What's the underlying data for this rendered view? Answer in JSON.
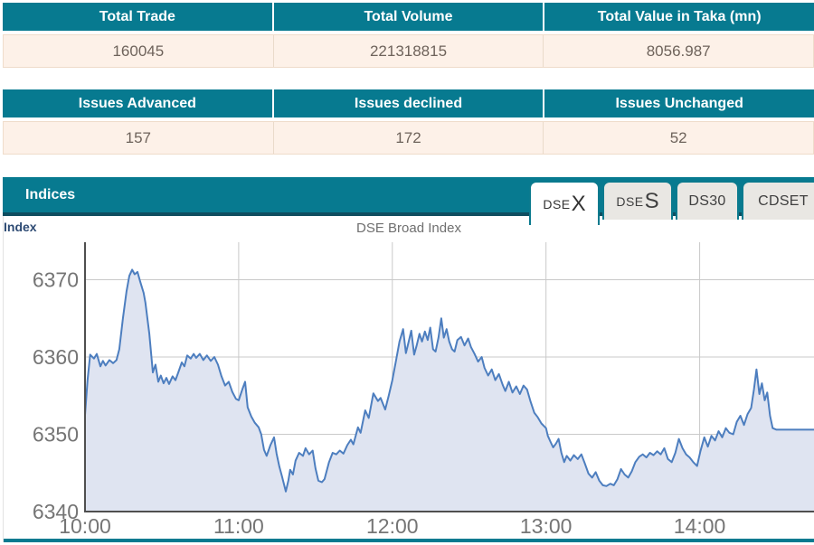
{
  "summary_table": {
    "headers": [
      "Total Trade",
      "Total Volume",
      "Total Value in Taka (mn)"
    ],
    "values": [
      "160045",
      "221318815",
      "8056.987"
    ]
  },
  "issues_table": {
    "headers": [
      "Issues Advanced",
      "Issues declined",
      "Issues Unchanged"
    ],
    "values": [
      "157",
      "172",
      "52"
    ]
  },
  "indices_panel": {
    "title": "Indices",
    "tabs": [
      {
        "name": "DSEX",
        "prefix": "DSE",
        "suffix": "X",
        "active": true
      },
      {
        "name": "DSES",
        "prefix": "DSE",
        "suffix": "S",
        "active": false
      },
      {
        "name": "DS30",
        "prefix": "DS30",
        "suffix": "",
        "active": false
      },
      {
        "name": "CDSET",
        "prefix": "CDSET",
        "suffix": "",
        "active": false
      }
    ],
    "axis_caption": "Index",
    "chart_title": "DSE Broad Index"
  },
  "colors": {
    "header_teal": "#077a90",
    "header_teal_dark_edge": "#0f4d60",
    "value_row_cream": "#fdf1e8",
    "value_text": "#6e635b",
    "chart_line": "#4d7ebf",
    "chart_area_fill": "#dfe4f1",
    "gridline": "#c9c9c9",
    "axis": "#4f4f4f",
    "tick_label": "#757575",
    "index_caption_blue": "#2d4a73",
    "chart_title_gray": "#6f6f6f"
  },
  "chart_data": {
    "type": "area",
    "title": "DSE Broad Index",
    "ylabel": "Index",
    "ylim": [
      6340,
      6375
    ],
    "y_ticks": [
      6340,
      6350,
      6360,
      6370
    ],
    "x_ticks": [
      "10:00",
      "11:00",
      "12:00",
      "13:00",
      "14:00"
    ],
    "x_tick_minutes": [
      0,
      60,
      120,
      180,
      240
    ],
    "x_range_minutes": [
      0,
      285
    ],
    "grid": true,
    "legend": "none",
    "series": [
      {
        "name": "DSEX",
        "points": [
          [
            0,
            6352.5
          ],
          [
            1,
            6357
          ],
          [
            2,
            6360.3
          ],
          [
            3.5,
            6359.8
          ],
          [
            4.6,
            6360.4
          ],
          [
            6,
            6358.8
          ],
          [
            7,
            6359.5
          ],
          [
            8,
            6358.9
          ],
          [
            9.5,
            6359.6
          ],
          [
            11,
            6359.2
          ],
          [
            12.3,
            6359.6
          ],
          [
            13.4,
            6361
          ],
          [
            14.8,
            6365
          ],
          [
            16.2,
            6368.5
          ],
          [
            17.3,
            6370.5
          ],
          [
            18.4,
            6371.3
          ],
          [
            19.4,
            6370.7
          ],
          [
            20.5,
            6371
          ],
          [
            21.5,
            6369.8
          ],
          [
            22.9,
            6368.3
          ],
          [
            23.6,
            6367
          ],
          [
            25.1,
            6363
          ],
          [
            26.5,
            6358
          ],
          [
            27.5,
            6359
          ],
          [
            28.6,
            6356.8
          ],
          [
            29.6,
            6357.6
          ],
          [
            30.7,
            6356.6
          ],
          [
            31.8,
            6357.3
          ],
          [
            32.8,
            6356.5
          ],
          [
            34.2,
            6357.5
          ],
          [
            35.3,
            6357
          ],
          [
            36.4,
            6358
          ],
          [
            37.8,
            6359.3
          ],
          [
            38.8,
            6358.8
          ],
          [
            39.9,
            6360.2
          ],
          [
            41.3,
            6359.8
          ],
          [
            42.4,
            6360.4
          ],
          [
            43.4,
            6359.9
          ],
          [
            44.8,
            6360.4
          ],
          [
            46.2,
            6359.6
          ],
          [
            47.6,
            6360.2
          ],
          [
            49.1,
            6359.5
          ],
          [
            50.5,
            6360
          ],
          [
            51.9,
            6359
          ],
          [
            53.3,
            6357.5
          ],
          [
            54.7,
            6356.3
          ],
          [
            56.1,
            6356.8
          ],
          [
            57.5,
            6355.5
          ],
          [
            58.9,
            6354.6
          ],
          [
            60,
            6354.4
          ],
          [
            61.4,
            6355.8
          ],
          [
            62.5,
            6356.8
          ],
          [
            63.5,
            6353.5
          ],
          [
            64.9,
            6352.3
          ],
          [
            66.3,
            6351.5
          ],
          [
            67.8,
            6350.9
          ],
          [
            68.8,
            6350
          ],
          [
            69.9,
            6348
          ],
          [
            70.9,
            6347.2
          ],
          [
            72.4,
            6348.6
          ],
          [
            73.8,
            6349.6
          ],
          [
            74.8,
            6347.5
          ],
          [
            75.9,
            6345.8
          ],
          [
            76.9,
            6344.6
          ],
          [
            78.4,
            6342.6
          ],
          [
            79.4,
            6344
          ],
          [
            80.1,
            6345.4
          ],
          [
            81.2,
            6344.8
          ],
          [
            82.2,
            6346.6
          ],
          [
            83.6,
            6347.6
          ],
          [
            85.1,
            6347.2
          ],
          [
            86.1,
            6348.2
          ],
          [
            87.5,
            6347.4
          ],
          [
            88.9,
            6347.9
          ],
          [
            90,
            6345.6
          ],
          [
            91.1,
            6344
          ],
          [
            92.5,
            6343.8
          ],
          [
            93.5,
            6344.2
          ],
          [
            95.3,
            6346.4
          ],
          [
            96.7,
            6347.6
          ],
          [
            98.1,
            6347.4
          ],
          [
            99.5,
            6347.9
          ],
          [
            100.9,
            6347.5
          ],
          [
            102.4,
            6348.6
          ],
          [
            103.8,
            6349.3
          ],
          [
            104.8,
            6348.7
          ],
          [
            106.6,
            6350.9
          ],
          [
            107.6,
            6350.2
          ],
          [
            109.4,
            6353.1
          ],
          [
            110.8,
            6352.1
          ],
          [
            112.6,
            6355.3
          ],
          [
            114.4,
            6354.3
          ],
          [
            115.4,
            6354.7
          ],
          [
            117.2,
            6353.2
          ],
          [
            118.6,
            6355
          ],
          [
            120,
            6357
          ],
          [
            121.4,
            6359.5
          ],
          [
            122.8,
            6362
          ],
          [
            124.2,
            6363.6
          ],
          [
            125.3,
            6360.5
          ],
          [
            126.4,
            6362
          ],
          [
            127.4,
            6363.4
          ],
          [
            128.5,
            6360.3
          ],
          [
            129.5,
            6361.5
          ],
          [
            130.6,
            6363
          ],
          [
            131.6,
            6362
          ],
          [
            132.7,
            6363.3
          ],
          [
            133.8,
            6362.2
          ],
          [
            134.8,
            6363.8
          ],
          [
            135.9,
            6361
          ],
          [
            136.9,
            6360.7
          ],
          [
            138,
            6362.5
          ],
          [
            139.1,
            6365
          ],
          [
            140.1,
            6362.5
          ],
          [
            141.2,
            6363.6
          ],
          [
            142.2,
            6362
          ],
          [
            143.3,
            6361
          ],
          [
            144.3,
            6360.7
          ],
          [
            145.4,
            6362.2
          ],
          [
            146.8,
            6362.6
          ],
          [
            148.2,
            6361.5
          ],
          [
            149.6,
            6362.4
          ],
          [
            150.7,
            6361.3
          ],
          [
            152.1,
            6360.4
          ],
          [
            153.5,
            6359.4
          ],
          [
            154.9,
            6360
          ],
          [
            156,
            6358.6
          ],
          [
            157.4,
            6357.6
          ],
          [
            158.8,
            6358.4
          ],
          [
            160.2,
            6357
          ],
          [
            161.6,
            6357.8
          ],
          [
            163.1,
            6356.4
          ],
          [
            164.1,
            6355.6
          ],
          [
            165.5,
            6356.8
          ],
          [
            166.9,
            6355.4
          ],
          [
            168.4,
            6356.2
          ],
          [
            169.8,
            6355.2
          ],
          [
            171.2,
            6356.3
          ],
          [
            172.6,
            6355.8
          ],
          [
            174,
            6354.2
          ],
          [
            175.4,
            6352.8
          ],
          [
            176.8,
            6352.2
          ],
          [
            178.2,
            6351.4
          ],
          [
            180,
            6350.8
          ],
          [
            180.7,
            6349.8
          ],
          [
            181.8,
            6349
          ],
          [
            182.8,
            6348.3
          ],
          [
            183.9,
            6348.8
          ],
          [
            184.9,
            6349.4
          ],
          [
            186,
            6347.6
          ],
          [
            187.1,
            6346.4
          ],
          [
            188.1,
            6347.2
          ],
          [
            189.5,
            6346.6
          ],
          [
            190.9,
            6347.3
          ],
          [
            192.4,
            6346.8
          ],
          [
            193.8,
            6347.4
          ],
          [
            195.2,
            6346.2
          ],
          [
            196.6,
            6344.9
          ],
          [
            198,
            6344.4
          ],
          [
            199.4,
            6345.1
          ],
          [
            200.8,
            6344
          ],
          [
            202.2,
            6343.4
          ],
          [
            203.6,
            6343.3
          ],
          [
            205.1,
            6343.6
          ],
          [
            206.5,
            6343.4
          ],
          [
            207.9,
            6344.2
          ],
          [
            209.3,
            6345.5
          ],
          [
            210.7,
            6344.8
          ],
          [
            212.1,
            6344.4
          ],
          [
            213.5,
            6345.2
          ],
          [
            214.9,
            6346.4
          ],
          [
            216.4,
            6347.1
          ],
          [
            217.8,
            6347.4
          ],
          [
            219.2,
            6347
          ],
          [
            220.6,
            6347.6
          ],
          [
            222,
            6347.3
          ],
          [
            223.4,
            6347.8
          ],
          [
            224.8,
            6347.4
          ],
          [
            226.2,
            6348.2
          ],
          [
            227.6,
            6346.8
          ],
          [
            229.1,
            6346.4
          ],
          [
            230.5,
            6347.6
          ],
          [
            231.9,
            6349.4
          ],
          [
            233.3,
            6348.2
          ],
          [
            234.7,
            6347.4
          ],
          [
            236.1,
            6347
          ],
          [
            237.5,
            6346.4
          ],
          [
            239,
            6345.9
          ],
          [
            240.3,
            6347.8
          ],
          [
            241.8,
            6349.6
          ],
          [
            243.2,
            6348.4
          ],
          [
            244.6,
            6349.8
          ],
          [
            246,
            6349.2
          ],
          [
            247.4,
            6350.4
          ],
          [
            248.8,
            6349.6
          ],
          [
            250.2,
            6350.8
          ],
          [
            251.6,
            6350.2
          ],
          [
            253.1,
            6350
          ],
          [
            254.5,
            6351.6
          ],
          [
            255.9,
            6352.4
          ],
          [
            257.3,
            6351.2
          ],
          [
            258.7,
            6352.6
          ],
          [
            260.1,
            6353.4
          ],
          [
            261.2,
            6355.8
          ],
          [
            262.2,
            6358.4
          ],
          [
            263.3,
            6355.2
          ],
          [
            264.3,
            6356.6
          ],
          [
            265.4,
            6354.4
          ],
          [
            266.4,
            6355.4
          ],
          [
            267.5,
            6352.4
          ],
          [
            268.5,
            6350.8
          ],
          [
            270,
            6350.6
          ],
          [
            285,
            6350.6
          ]
        ]
      }
    ]
  }
}
